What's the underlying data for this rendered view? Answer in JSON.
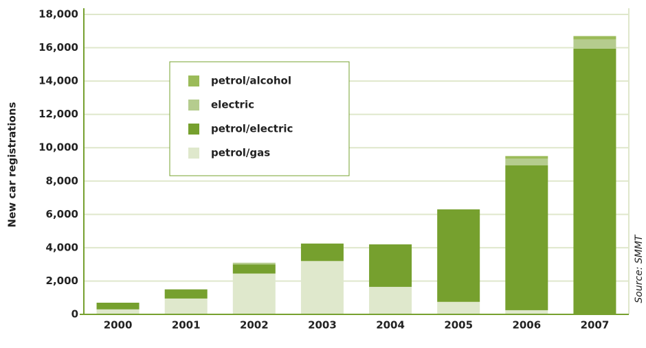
{
  "chart_data": {
    "type": "stacked_bar",
    "y_label": "New car registrations",
    "source": "Source: SMMT",
    "categories": [
      "2000",
      "2001",
      "2002",
      "2003",
      "2004",
      "2005",
      "2006",
      "2007"
    ],
    "series": [
      {
        "name": "petrol/gas",
        "color": "#dfe8cc",
        "values": [
          300,
          950,
          2450,
          3200,
          1650,
          750,
          250,
          0
        ]
      },
      {
        "name": "petrol/electric",
        "color": "#76a02e",
        "values": [
          400,
          550,
          550,
          1050,
          2550,
          5550,
          8700,
          15950
        ]
      },
      {
        "name": "electric",
        "color": "#b5cc8e",
        "values": [
          0,
          0,
          100,
          0,
          0,
          0,
          400,
          550
        ]
      },
      {
        "name": "petrol/alcohol",
        "color": "#9bbb59",
        "values": [
          0,
          0,
          0,
          0,
          0,
          0,
          150,
          200
        ]
      }
    ],
    "ylim": [
      0,
      18000
    ],
    "yticks": [
      0,
      {
        "value": 2000,
        "label": "2,000"
      },
      {
        "value": 4000,
        "label": "4,000"
      },
      {
        "value": 6000,
        "label": "6,000"
      },
      {
        "value": 8000,
        "label": "8,000"
      },
      {
        "value": 10000,
        "label": "10,000"
      },
      {
        "value": 12000,
        "label": "12,000"
      },
      {
        "value": 14000,
        "label": "14,000"
      },
      {
        "value": 16000,
        "label": "16,000"
      },
      {
        "value": 18000,
        "label": "18,000"
      }
    ],
    "grid": true,
    "legend": "upper left"
  }
}
